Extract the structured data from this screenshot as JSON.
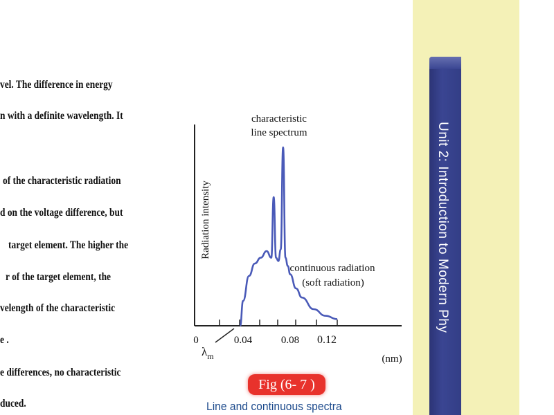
{
  "body_text": [
    "vel.  The  difference  in  energy",
    "n with a definite wavelength. It",
    "of  the  characteristic  radiation",
    "d on the voltage difference, but",
    "target element. The higher the",
    "r  of  the  target  element,  the",
    "velength  of  the  characteristic",
    "e .",
    "e  differences,  no  characteristic",
    "duced."
  ],
  "figure": {
    "ylabel": "Radiation intensity",
    "label_line": [
      "characteristic",
      "line spectrum"
    ],
    "label_continuous": [
      "continuous radiation",
      "(soft radiation)"
    ],
    "x_ticks": [
      "0",
      "0.04",
      "0.08",
      "0.12"
    ],
    "lambda_label": "λ",
    "lambda_sub": "m",
    "unit": "(nm)",
    "curve_color": "#4a5ab8"
  },
  "caption": {
    "fig_number": "Fig (6- 7  )",
    "text": "Line and continuous spectra"
  },
  "sidebar": {
    "unit_title": "Unit 2:  Introduction to Modern Phy"
  },
  "chart_data": {
    "type": "line",
    "xlabel": "",
    "ylabel": "Radiation intensity",
    "x_unit": "(nm)",
    "x_ticks": [
      0,
      0.04,
      0.08,
      0.12
    ],
    "series": [
      {
        "x": [
          0.0375,
          0.04,
          0.045,
          0.05,
          0.055,
          0.06,
          0.064,
          0.066,
          0.068,
          0.07,
          0.072,
          0.074,
          0.076,
          0.078,
          0.08,
          0.085,
          0.09,
          0.1,
          0.11,
          0.12
        ],
        "y": [
          0,
          0.3,
          0.6,
          0.75,
          0.82,
          0.9,
          0.82,
          1.55,
          0.82,
          0.78,
          0.92,
          2.15,
          0.82,
          0.72,
          0.62,
          0.45,
          0.34,
          0.2,
          0.12,
          0.08
        ]
      }
    ],
    "annotations": [
      "characteristic line spectrum",
      "continuous radiation (soft radiation)",
      "λm"
    ]
  }
}
